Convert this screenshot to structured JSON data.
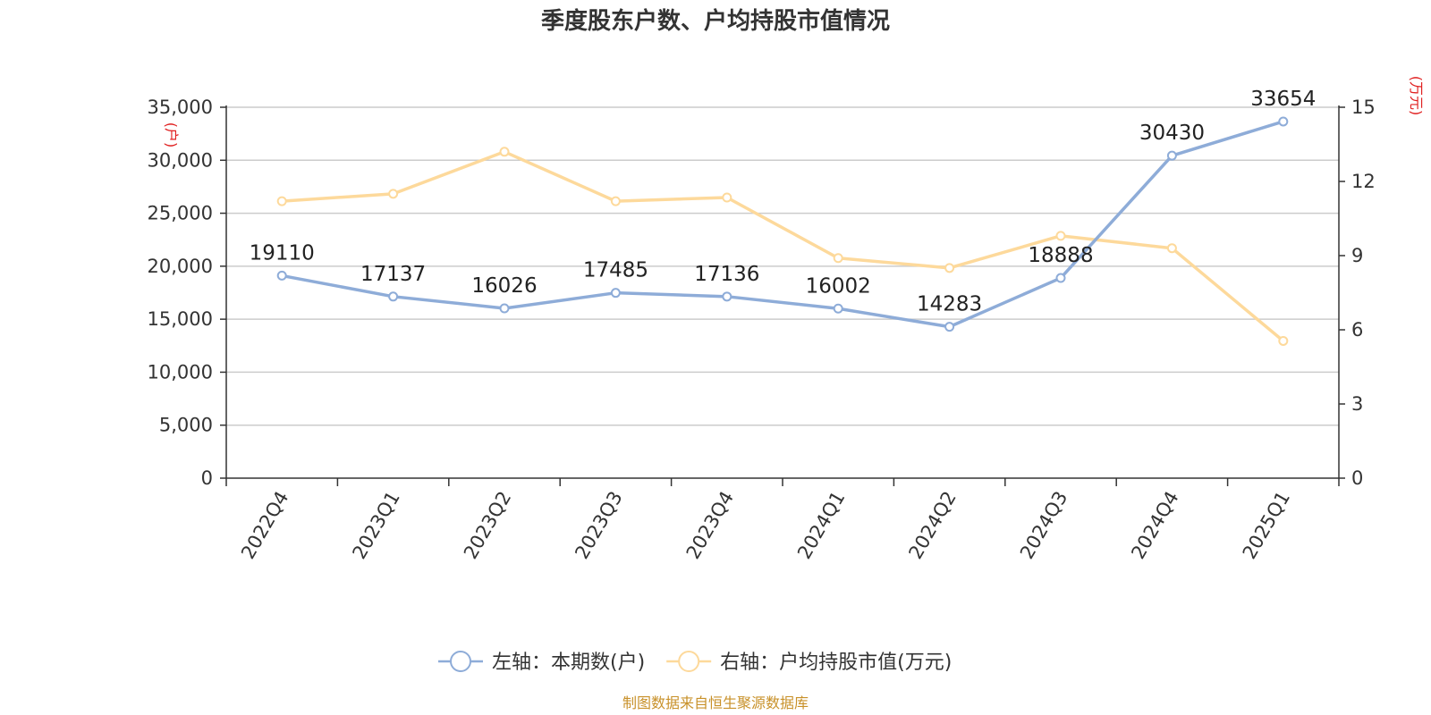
{
  "chart_data": {
    "type": "line",
    "title": "季度股东户数、户均持股市值情况",
    "categories": [
      "2022Q4",
      "2023Q1",
      "2023Q2",
      "2023Q3",
      "2023Q4",
      "2024Q1",
      "2024Q2",
      "2024Q3",
      "2024Q4",
      "2025Q1"
    ],
    "y_left": {
      "unit": "(户)",
      "min": 0,
      "max": 35000,
      "ticks": [
        0,
        5000,
        10000,
        15000,
        20000,
        25000,
        30000,
        35000
      ],
      "tick_labels": [
        "0",
        "5,000",
        "10,000",
        "15,000",
        "20,000",
        "25,000",
        "30,000",
        "35,000"
      ]
    },
    "y_right": {
      "unit": "(万元)",
      "min": 0,
      "max": 15,
      "ticks": [
        0,
        3,
        6,
        9,
        12,
        15
      ],
      "tick_labels": [
        "0",
        "3",
        "6",
        "9",
        "12",
        "15"
      ]
    },
    "grid": true,
    "legend_position": "bottom",
    "series": [
      {
        "name": "左轴：本期数(户)",
        "axis": "left",
        "color": "#8eacd8",
        "values": [
          19110,
          17137,
          16026,
          17485,
          17136,
          16002,
          14283,
          18888,
          30430,
          33654
        ],
        "labels": [
          "19110",
          "17137",
          "16026",
          "17485",
          "17136",
          "16002",
          "14283",
          "18888",
          "30430",
          "33654"
        ]
      },
      {
        "name": "右轴：户均持股市值(万元)",
        "axis": "right",
        "color": "#fdd99b",
        "values": [
          11.2,
          11.5,
          13.2,
          11.2,
          11.35,
          8.9,
          8.5,
          9.8,
          9.3,
          5.55
        ]
      }
    ]
  },
  "source": "制图数据来自恒生聚源数据库"
}
